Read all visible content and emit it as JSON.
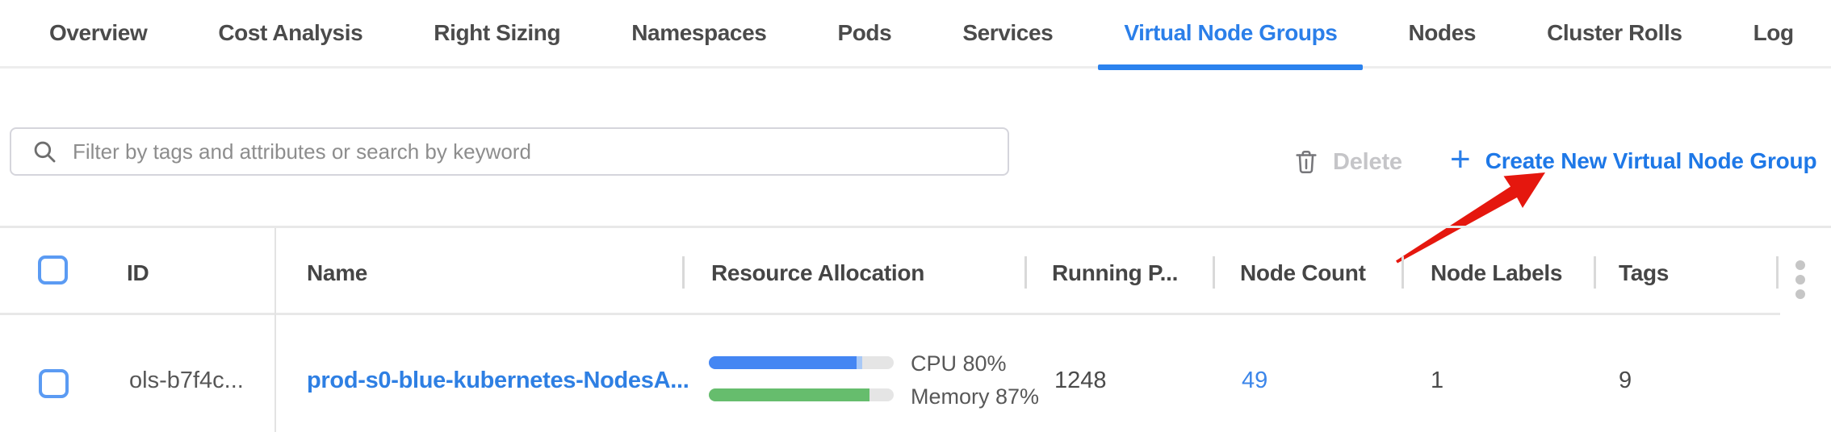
{
  "tabs": {
    "items": [
      {
        "label": "Overview",
        "active": false
      },
      {
        "label": "Cost Analysis",
        "active": false
      },
      {
        "label": "Right Sizing",
        "active": false
      },
      {
        "label": "Namespaces",
        "active": false
      },
      {
        "label": "Pods",
        "active": false
      },
      {
        "label": "Services",
        "active": false
      },
      {
        "label": "Virtual Node Groups",
        "active": true
      },
      {
        "label": "Nodes",
        "active": false
      },
      {
        "label": "Cluster Rolls",
        "active": false
      },
      {
        "label": "Log",
        "active": false
      }
    ]
  },
  "toolbar": {
    "filter_placeholder": "Filter by tags and attributes or search by keyword",
    "delete_label": "Delete",
    "create_plus": "+",
    "create_label": "Create New Virtual Node Group"
  },
  "icons": {
    "search": "magnifier",
    "delete": "trash-outline",
    "create": "plus",
    "column_menu": "kebab-vertical-dots",
    "annotation": "red-arrow-pointing-at-create-button"
  },
  "table": {
    "columns": [
      "ID",
      "Name",
      "Resource Allocation",
      "Running P...",
      "Node Count",
      "Node Labels",
      "Tags"
    ],
    "rows": [
      {
        "id": "ols-b7f4c...",
        "name": "prod-s0-blue-kubernetes-NodesA...",
        "cpu_label": "CPU 80%",
        "cpu_percent": 80,
        "cpu_tip_percent": 3,
        "memory_label": "Memory 87%",
        "memory_percent": 87,
        "running_pods": "1248",
        "node_count": "49",
        "node_labels": "1",
        "tags": "9"
      }
    ]
  },
  "colors": {
    "active_tab_blue": "#2b7fe9",
    "create_link_blue": "#1e78e7",
    "row_link_blue": "#2e7fe3",
    "cpu_bar_blue": "#4486f3",
    "cpu_bar_tip_lightblue": "#a9c9f6",
    "memory_bar_green": "#66bd6d",
    "checkbox_border_blue": "#5b9bf3",
    "annotation_arrow_red": "#e5170e",
    "disabled_gray": "#c5c5c8"
  }
}
